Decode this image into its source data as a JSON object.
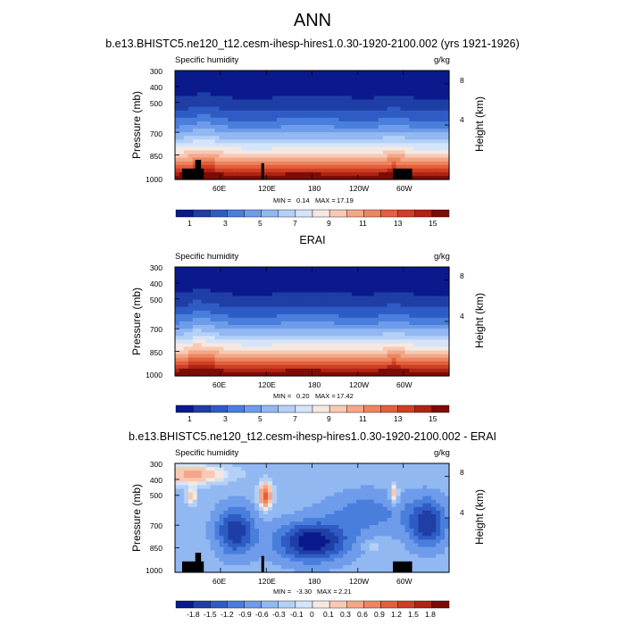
{
  "title": "ANN",
  "chart_data": [
    {
      "type": "heatmap",
      "title": "b.e13.BHISTC5.ne120_t12.cesm-ihesp-hires1.0.30-1920-2100.002 (yrs 1921-1926)",
      "variable": "Specific humidity",
      "units": "g/kg",
      "ylabel": "Pressure (mb)",
      "y2label": "Height (km)",
      "xticks": [
        "60E",
        "120E",
        "180",
        "120W",
        "60W"
      ],
      "yticks": [
        "300",
        "400",
        "500",
        "700",
        "850",
        "1000"
      ],
      "y2ticks": [
        "8",
        "4"
      ],
      "ylim": [
        1000,
        300
      ],
      "min": 0.14,
      "max": 17.19,
      "min_label": "MIN =",
      "min_value": "0.14",
      "max_label": "MAX =",
      "max_value": "17.19",
      "colorbar_labels": [
        "1",
        "3",
        "5",
        "7",
        "9",
        "11",
        "13",
        "15"
      ],
      "colors": [
        "#0a1a8c",
        "#1f3ea6",
        "#2f5cc4",
        "#4a7edc",
        "#6e9cea",
        "#92b8f2",
        "#b4d0f7",
        "#d4e4fa",
        "#f5e8e0",
        "#f8c9b3",
        "#f4a788",
        "#ed855f",
        "#e2603d",
        "#cf3f24",
        "#b02414",
        "#7e0c06"
      ]
    },
    {
      "type": "heatmap",
      "title": "ERAI",
      "variable": "Specific humidity",
      "units": "g/kg",
      "ylabel": "Pressure (mb)",
      "y2label": "Height (km)",
      "xticks": [
        "60E",
        "120E",
        "180",
        "120W",
        "60W"
      ],
      "yticks": [
        "300",
        "400",
        "500",
        "700",
        "850",
        "1000"
      ],
      "y2ticks": [
        "8",
        "4"
      ],
      "ylim": [
        1000,
        300
      ],
      "min": 0.2,
      "max": 17.42,
      "min_label": "MIN =",
      "min_value": "0.20",
      "max_label": "MAX =",
      "max_value": "17.42",
      "colorbar_labels": [
        "1",
        "3",
        "5",
        "7",
        "9",
        "11",
        "13",
        "15"
      ],
      "colors": [
        "#0a1a8c",
        "#1f3ea6",
        "#2f5cc4",
        "#4a7edc",
        "#6e9cea",
        "#92b8f2",
        "#b4d0f7",
        "#d4e4fa",
        "#f5e8e0",
        "#f8c9b3",
        "#f4a788",
        "#ed855f",
        "#e2603d",
        "#cf3f24",
        "#b02414",
        "#7e0c06"
      ]
    },
    {
      "type": "heatmap",
      "title": "b.e13.BHISTC5.ne120_t12.cesm-ihesp-hires1.0.30-1920-2100.002 - ERAI",
      "variable": "Specific humidity",
      "units": "g/kg",
      "ylabel": "Pressure (mb)",
      "y2label": "Height (km)",
      "xticks": [
        "60E",
        "120E",
        "180",
        "120W",
        "60W"
      ],
      "yticks": [
        "300",
        "400",
        "500",
        "700",
        "850",
        "1000"
      ],
      "y2ticks": [
        "8",
        "4"
      ],
      "ylim": [
        1000,
        300
      ],
      "min": -3.3,
      "max": 2.21,
      "min_label": "MIN =",
      "min_value": "-3.30",
      "max_label": "MAX =",
      "max_value": "2.21",
      "colorbar_labels": [
        "-1.8",
        "-1.5",
        "-1.2",
        "-0.9",
        "-0.6",
        "-0.3",
        "-0.1",
        "0",
        "0.1",
        "0.3",
        "0.6",
        "0.9",
        "1.2",
        "1.5",
        "1.8"
      ],
      "colors": [
        "#0a1a8c",
        "#1f3ea6",
        "#2f5cc4",
        "#4a7edc",
        "#6e9cea",
        "#92b8f2",
        "#b4d0f7",
        "#d4e4fa",
        "#f5e8e0",
        "#f8c9b3",
        "#f4a788",
        "#ed855f",
        "#e2603d",
        "#cf3f24",
        "#b02414",
        "#7e0c06"
      ]
    }
  ]
}
